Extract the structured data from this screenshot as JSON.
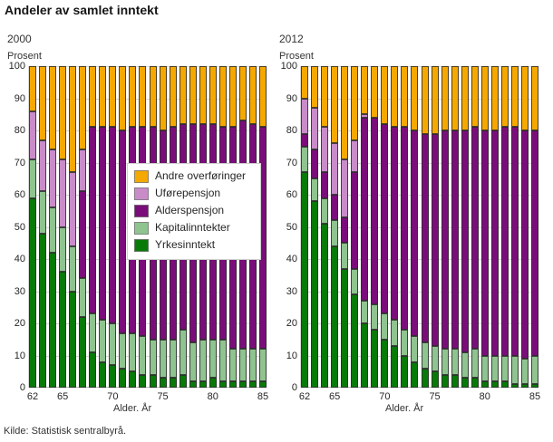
{
  "title": "Andeler av samlet inntekt",
  "footer": {
    "source": "Kilde: Statistisk sentralbyrå."
  },
  "colors": {
    "andre_overforinger": "#f5a800",
    "uforepensjon": "#c98cc9",
    "alderspensjon": "#7b0d7b",
    "kapitalinntekter": "#8fc38f",
    "yrkesinntekt": "#087a08",
    "grid": "#d9d9d9",
    "segment_outline": "#2d2d2d"
  },
  "legend": [
    {
      "label": "Andre overføringer",
      "color": "#f5a800"
    },
    {
      "label": "Uførepensjon",
      "color": "#c98cc9"
    },
    {
      "label": "Alderspensjon",
      "color": "#7b0d7b"
    },
    {
      "label": "Kapitalinntekter",
      "color": "#8fc38f"
    },
    {
      "label": "Yrkesinntekt",
      "color": "#087a08"
    }
  ],
  "chart_data": [
    {
      "type": "bar",
      "subtype": "stacked-100",
      "subtitle": "2000",
      "ylabel": "Prosent",
      "xlabel": "Alder. År",
      "ylim": [
        0,
        100
      ],
      "grid": true,
      "yticks": [
        0,
        10,
        20,
        30,
        40,
        50,
        60,
        70,
        80,
        90,
        100
      ],
      "xticks": [
        62,
        65,
        70,
        75,
        80,
        85
      ],
      "categories": [
        62,
        63,
        64,
        65,
        66,
        67,
        68,
        69,
        70,
        71,
        72,
        73,
        74,
        75,
        76,
        77,
        78,
        79,
        80,
        81,
        82,
        83,
        84,
        85
      ],
      "stack_order_bottom_to_top": [
        "Yrkesinntekt",
        "Kapitalinntekter",
        "Alderspensjon",
        "Uførepensjon",
        "Andre overføringer"
      ],
      "series": [
        {
          "name": "Yrkesinntekt",
          "color": "#087a08",
          "values": [
            59,
            48,
            42,
            36,
            30,
            22,
            11,
            8,
            7,
            6,
            5,
            4,
            4,
            3,
            3,
            4,
            2,
            2,
            3,
            2,
            2,
            2,
            2,
            2
          ]
        },
        {
          "name": "Kapitalinntekter",
          "color": "#8fc38f",
          "values": [
            12,
            13,
            14,
            14,
            14,
            12,
            12,
            13,
            13,
            11,
            12,
            12,
            11,
            12,
            12,
            14,
            12,
            13,
            12,
            13,
            10,
            10,
            10,
            10
          ]
        },
        {
          "name": "Alderspensjon",
          "color": "#7b0d7b",
          "values": [
            0,
            0,
            0,
            0,
            0,
            27,
            58,
            60,
            61,
            63,
            64,
            65,
            66,
            65,
            66,
            64,
            68,
            67,
            67,
            66,
            69,
            71,
            70,
            69
          ]
        },
        {
          "name": "Uførepensjon",
          "color": "#c98cc9",
          "values": [
            15,
            16,
            18,
            21,
            23,
            13,
            0,
            0,
            0,
            0,
            0,
            0,
            0,
            0,
            0,
            0,
            0,
            0,
            0,
            0,
            0,
            0,
            0,
            0
          ]
        },
        {
          "name": "Andre overføringer",
          "color": "#f5a800",
          "values": [
            14,
            23,
            26,
            29,
            33,
            26,
            19,
            19,
            19,
            20,
            19,
            19,
            19,
            20,
            19,
            18,
            18,
            18,
            18,
            19,
            19,
            17,
            18,
            19
          ]
        }
      ]
    },
    {
      "type": "bar",
      "subtype": "stacked-100",
      "subtitle": "2012",
      "ylabel": "Prosent",
      "xlabel": "Alder. År",
      "ylim": [
        0,
        100
      ],
      "grid": true,
      "yticks": [
        0,
        10,
        20,
        30,
        40,
        50,
        60,
        70,
        80,
        90,
        100
      ],
      "xticks": [
        62,
        65,
        70,
        75,
        80,
        85
      ],
      "categories": [
        62,
        63,
        64,
        65,
        66,
        67,
        68,
        69,
        70,
        71,
        72,
        73,
        74,
        75,
        76,
        77,
        78,
        79,
        80,
        81,
        82,
        83,
        84,
        85
      ],
      "stack_order_bottom_to_top": [
        "Yrkesinntekt",
        "Kapitalinntekter",
        "Alderspensjon",
        "Uførepensjon",
        "Andre overføringer"
      ],
      "series": [
        {
          "name": "Yrkesinntekt",
          "color": "#087a08",
          "values": [
            67,
            58,
            51,
            44,
            37,
            29,
            20,
            18,
            15,
            13,
            10,
            8,
            6,
            5,
            4,
            4,
            3,
            3,
            2,
            2,
            2,
            1,
            1,
            1
          ]
        },
        {
          "name": "Kapitalinntekter",
          "color": "#8fc38f",
          "values": [
            8,
            7,
            8,
            8,
            8,
            8,
            7,
            8,
            8,
            8,
            8,
            8,
            8,
            8,
            8,
            8,
            8,
            9,
            8,
            8,
            8,
            9,
            8,
            9
          ]
        },
        {
          "name": "Alderspensjon",
          "color": "#7b0d7b",
          "values": [
            4,
            9,
            8,
            8,
            8,
            30,
            57,
            58,
            59,
            60,
            63,
            64,
            65,
            66,
            68,
            68,
            69,
            69,
            70,
            70,
            71,
            71,
            71,
            70
          ]
        },
        {
          "name": "Uførepensjon",
          "color": "#c98cc9",
          "values": [
            11,
            13,
            14,
            16,
            18,
            10,
            1,
            0,
            0,
            0,
            0,
            0,
            0,
            0,
            0,
            0,
            0,
            0,
            0,
            0,
            0,
            0,
            0,
            0
          ]
        },
        {
          "name": "Andre overføringer",
          "color": "#f5a800",
          "values": [
            10,
            13,
            19,
            24,
            29,
            23,
            15,
            16,
            18,
            19,
            19,
            20,
            21,
            21,
            20,
            20,
            20,
            19,
            20,
            20,
            19,
            19,
            20,
            20
          ]
        }
      ]
    }
  ]
}
